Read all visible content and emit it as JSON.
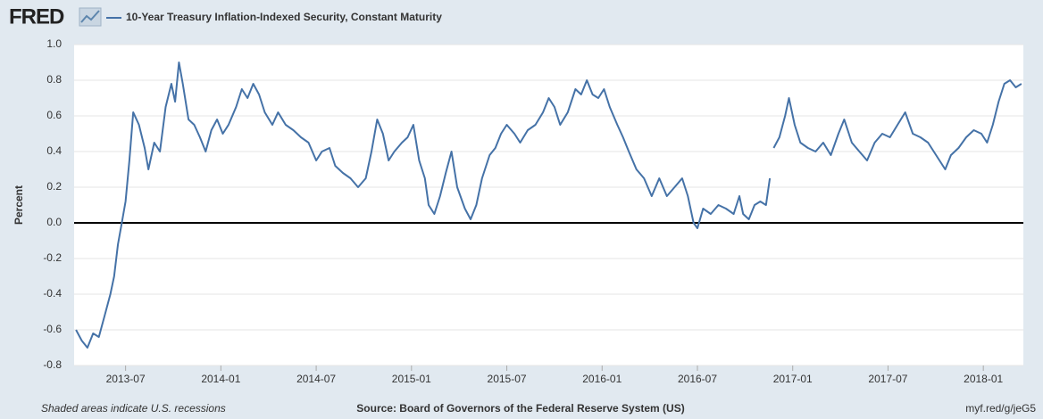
{
  "chart_data": {
    "type": "line",
    "logo": "FRED",
    "ylabel": "Percent",
    "footer_left": "Shaded areas indicate U.S. recessions",
    "footer_center": "Source: Board of Governors of the Federal Reserve System (US)",
    "footer_right": "myf.red/g/jeG5",
    "grid": true,
    "legend": "top",
    "xlim": [
      2013.23,
      2018.21
    ],
    "ylim": [
      -0.8,
      1.0
    ],
    "xticks": [
      {
        "value": 2013.5,
        "label": "2013-07"
      },
      {
        "value": 2014.0,
        "label": "2014-01"
      },
      {
        "value": 2014.5,
        "label": "2014-07"
      },
      {
        "value": 2015.0,
        "label": "2015-01"
      },
      {
        "value": 2015.5,
        "label": "2015-07"
      },
      {
        "value": 2016.0,
        "label": "2016-01"
      },
      {
        "value": 2016.5,
        "label": "2016-07"
      },
      {
        "value": 2017.0,
        "label": "2017-01"
      },
      {
        "value": 2017.5,
        "label": "2017-07"
      },
      {
        "value": 2018.0,
        "label": "2018-01"
      }
    ],
    "yticks": [
      {
        "value": 1.0,
        "label": "1.0"
      },
      {
        "value": 0.8,
        "label": "0.8"
      },
      {
        "value": 0.6,
        "label": "0.6"
      },
      {
        "value": 0.4,
        "label": "0.4"
      },
      {
        "value": 0.2,
        "label": "0.2"
      },
      {
        "value": 0.0,
        "label": "0.0"
      },
      {
        "value": -0.2,
        "label": "-0.2"
      },
      {
        "value": -0.4,
        "label": "-0.4"
      },
      {
        "value": -0.6,
        "label": "-0.6"
      },
      {
        "value": -0.8,
        "label": "-0.8"
      }
    ],
    "x": [
      2013.24,
      2013.27,
      2013.3,
      2013.33,
      2013.36,
      2013.39,
      2013.42,
      2013.44,
      2013.46,
      2013.48,
      2013.5,
      2013.52,
      2013.54,
      2013.57,
      2013.6,
      2013.62,
      2013.65,
      2013.68,
      2013.71,
      2013.74,
      2013.76,
      2013.78,
      2013.8,
      2013.83,
      2013.86,
      2013.89,
      2013.92,
      2013.95,
      2013.98,
      2014.01,
      2014.04,
      2014.08,
      2014.11,
      2014.14,
      2014.17,
      2014.2,
      2014.23,
      2014.27,
      2014.3,
      2014.34,
      2014.38,
      2014.42,
      2014.46,
      2014.5,
      2014.53,
      2014.57,
      2014.6,
      2014.64,
      2014.68,
      2014.72,
      2014.76,
      2014.79,
      2014.82,
      2014.85,
      2014.88,
      2014.91,
      2014.95,
      2014.98,
      2015.01,
      2015.04,
      2015.07,
      2015.09,
      2015.12,
      2015.15,
      2015.18,
      2015.21,
      2015.24,
      2015.28,
      2015.31,
      2015.34,
      2015.37,
      2015.41,
      2015.44,
      2015.47,
      2015.5,
      2015.54,
      2015.57,
      2015.61,
      2015.65,
      2015.69,
      2015.72,
      2015.75,
      2015.78,
      2015.82,
      2015.86,
      2015.89,
      2015.92,
      2015.95,
      2015.98,
      2016.01,
      2016.04,
      2016.08,
      2016.11,
      2016.14,
      2016.18,
      2016.22,
      2016.26,
      2016.3,
      2016.34,
      2016.38,
      2016.42,
      2016.45,
      2016.48,
      2016.5,
      2016.53,
      2016.57,
      2016.61,
      2016.65,
      2016.69,
      2016.72,
      2016.74,
      2016.77,
      2016.8,
      2016.83,
      2016.86,
      2016.88,
      2016.89,
      2016.9,
      2016.93,
      2016.96,
      2016.98,
      2017.01,
      2017.04,
      2017.08,
      2017.12,
      2017.16,
      2017.2,
      2017.24,
      2017.27,
      2017.31,
      2017.35,
      2017.39,
      2017.43,
      2017.47,
      2017.51,
      2017.55,
      2017.59,
      2017.63,
      2017.67,
      2017.71,
      2017.74,
      2017.77,
      2017.8,
      2017.83,
      2017.87,
      2017.91,
      2017.95,
      2017.99,
      2018.02,
      2018.05,
      2018.08,
      2018.11,
      2018.14,
      2018.17,
      2018.2
    ],
    "series": [
      {
        "name": "10-Year Treasury Inflation-Indexed Security, Constant Maturity",
        "color": "#4572a7",
        "values": [
          -0.6,
          -0.66,
          -0.7,
          -0.62,
          -0.64,
          -0.52,
          -0.4,
          -0.3,
          -0.12,
          0.0,
          0.12,
          0.35,
          0.62,
          0.55,
          0.42,
          0.3,
          0.45,
          0.4,
          0.65,
          0.78,
          0.68,
          0.9,
          0.78,
          0.58,
          0.55,
          0.48,
          0.4,
          0.52,
          0.58,
          0.5,
          0.55,
          0.65,
          0.75,
          0.7,
          0.78,
          0.72,
          0.62,
          0.55,
          0.62,
          0.55,
          0.52,
          0.48,
          0.45,
          0.35,
          0.4,
          0.42,
          0.32,
          0.28,
          0.25,
          0.2,
          0.25,
          0.4,
          0.58,
          0.5,
          0.35,
          0.4,
          0.45,
          0.48,
          0.55,
          0.35,
          0.25,
          0.1,
          0.05,
          0.15,
          0.28,
          0.4,
          0.2,
          0.08,
          0.02,
          0.1,
          0.25,
          0.38,
          0.42,
          0.5,
          0.55,
          0.5,
          0.45,
          0.52,
          0.55,
          0.62,
          0.7,
          0.65,
          0.55,
          0.62,
          0.75,
          0.72,
          0.8,
          0.72,
          0.7,
          0.75,
          0.65,
          0.55,
          0.48,
          0.4,
          0.3,
          0.25,
          0.15,
          0.25,
          0.15,
          0.2,
          0.25,
          0.15,
          0.0,
          -0.03,
          0.08,
          0.05,
          0.1,
          0.08,
          0.05,
          0.15,
          0.05,
          0.02,
          0.1,
          0.12,
          0.1,
          0.25,
          null,
          0.42,
          0.48,
          0.6,
          0.7,
          0.55,
          0.45,
          0.42,
          0.4,
          0.45,
          0.38,
          0.5,
          0.58,
          0.45,
          0.4,
          0.35,
          0.45,
          0.5,
          0.48,
          0.55,
          0.62,
          0.5,
          0.48,
          0.45,
          0.4,
          0.35,
          0.3,
          0.38,
          0.42,
          0.48,
          0.52,
          0.5,
          0.45,
          0.55,
          0.68,
          0.78,
          0.8,
          0.76,
          0.78
        ]
      }
    ]
  }
}
